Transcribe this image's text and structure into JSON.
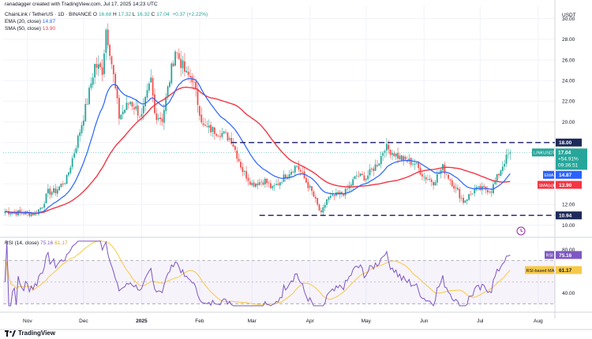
{
  "header": {
    "credit": "ranadagger created with TradingView.com, Jul 17, 2025 14:23 UTC",
    "symbol_line": "ChainLink / TetherUS · 1D · BINANCE",
    "O_label": "O",
    "O": "16.68",
    "H_label": "H",
    "H": "17.32",
    "L_label": "L",
    "L": "16.32",
    "C_label": "C",
    "C": "17.04",
    "change": "+0.37 (+2.22%)",
    "ema_label": "EMA (20, close)",
    "ema_value": "14.87",
    "sma_label": "SMA (50, close)",
    "sma_value": "13.90",
    "rsi_label": "RSI (14, close)",
    "rsi_value": "75.16",
    "rsi_ma_value": "61.17"
  },
  "footer": {
    "brand": "TradingView"
  },
  "colors": {
    "up": "#26a69a",
    "down": "#ef5350",
    "ema": "#2962ff",
    "sma": "#f23645",
    "rsi": "#7e57c2",
    "rsi_ma": "#f7c948",
    "level": "#1a1a66"
  },
  "chart_data": [
    {
      "type": "candlestick",
      "title": "ChainLink / TetherUS · 1D · BINANCE",
      "y_axis_label": "USDT",
      "ylim": [
        9.2,
        31.2
      ],
      "yticks": [
        "10.00",
        "12.00",
        "14.00",
        "16.00",
        "18.00",
        "20.00",
        "22.00",
        "24.00",
        "26.00",
        "28.00",
        "30.00"
      ],
      "xticks": [
        "Nov",
        "Dec",
        "2025",
        "Feb",
        "Mar",
        "Apr",
        "May",
        "Jun",
        "Jul",
        "Aug"
      ],
      "price_anchors": [
        [
          "2024-10-20",
          11.3
        ],
        [
          "2024-11-05",
          11.1
        ],
        [
          "2024-11-09",
          11.9
        ],
        [
          "2024-11-12",
          13.2
        ],
        [
          "2024-11-16",
          13.3
        ],
        [
          "2024-11-22",
          14.5
        ],
        [
          "2024-11-28",
          18.4
        ],
        [
          "2024-12-03",
          22.0
        ],
        [
          "2024-12-07",
          25.5
        ],
        [
          "2024-12-11",
          25.0
        ],
        [
          "2024-12-13",
          29.0
        ],
        [
          "2024-12-15",
          27.0
        ],
        [
          "2024-12-20",
          20.5
        ],
        [
          "2024-12-26",
          22.0
        ],
        [
          "2025-01-01",
          20.5
        ],
        [
          "2025-01-06",
          24.0
        ],
        [
          "2025-01-08",
          20.8
        ],
        [
          "2025-01-12",
          20.3
        ],
        [
          "2025-01-19",
          27.0
        ],
        [
          "2025-01-25",
          24.5
        ],
        [
          "2025-01-28",
          24.3
        ],
        [
          "2025-02-03",
          19.5
        ],
        [
          "2025-02-06",
          19.3
        ],
        [
          "2025-02-12",
          19.0
        ],
        [
          "2025-02-18",
          18.3
        ],
        [
          "2025-02-24",
          15.3
        ],
        [
          "2025-03-01",
          14.0
        ],
        [
          "2025-03-08",
          14.3
        ],
        [
          "2025-03-12",
          13.5
        ],
        [
          "2025-03-20",
          15.0
        ],
        [
          "2025-03-25",
          15.8
        ],
        [
          "2025-04-02",
          13.2
        ],
        [
          "2025-04-07",
          11.0
        ],
        [
          "2025-04-10",
          12.5
        ],
        [
          "2025-04-20",
          13.2
        ],
        [
          "2025-04-26",
          14.8
        ],
        [
          "2025-05-01",
          14.6
        ],
        [
          "2025-05-08",
          16.2
        ],
        [
          "2025-05-11",
          17.6
        ],
        [
          "2025-05-20",
          16.4
        ],
        [
          "2025-05-27",
          16.0
        ],
        [
          "2025-06-01",
          14.7
        ],
        [
          "2025-06-06",
          14.2
        ],
        [
          "2025-06-11",
          15.6
        ],
        [
          "2025-06-17",
          13.8
        ],
        [
          "2025-06-22",
          12.3
        ],
        [
          "2025-06-28",
          13.4
        ],
        [
          "2025-07-03",
          13.5
        ],
        [
          "2025-07-07",
          13.4
        ],
        [
          "2025-07-10",
          14.6
        ],
        [
          "2025-07-14",
          16.2
        ],
        [
          "2025-07-17",
          17.04
        ]
      ],
      "ema20_last": 14.87,
      "sma50_last": 13.9,
      "levels": [
        {
          "label": "18.00",
          "value": 18.0,
          "from": "2025-02-18"
        },
        {
          "label": "10.94",
          "value": 10.94,
          "from": "2025-03-05"
        }
      ],
      "price_labels": [
        {
          "name": "LINKUSDT",
          "value": "17.04",
          "sub": "+54.91%",
          "time": "09:36:51"
        },
        {
          "name": "EMA",
          "value": "14.87"
        },
        {
          "name": "SMA(s)MA",
          "value": "13.90"
        }
      ]
    },
    {
      "type": "line",
      "title": "RSI (14, close)",
      "ylim": [
        25,
        85
      ],
      "yticks": [
        "40.00",
        "60.00",
        "80.00"
      ],
      "bands": [
        30,
        70
      ],
      "rsi_last": 75.16,
      "rsi_ma_last": 61.17,
      "price_labels": [
        {
          "name": "RSI",
          "value": "75.16"
        },
        {
          "name": "RSI-based MA",
          "value": "61.17"
        }
      ]
    }
  ]
}
